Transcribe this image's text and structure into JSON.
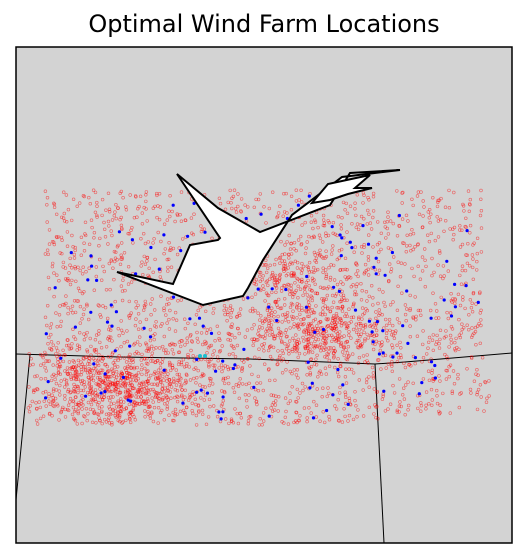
{
  "figure": {
    "title": "Optimal Wind Farm Locations",
    "background_color": "#d3d3d3",
    "lake_color": "#ffffff",
    "border_color": "#000000"
  },
  "chart_data": {
    "type": "scatter",
    "title": "Optimal Wind Farm Locations",
    "xlabel": "",
    "ylabel": "",
    "grid": false,
    "axes": "off",
    "series": [
      {
        "role": "candidate-sites",
        "marker": "small-circle",
        "color": "#ff0000",
        "approx_count": 3000
      },
      {
        "role": "selected-sites",
        "marker": "dot",
        "color": "#0000ff",
        "approx_count": 130
      },
      {
        "role": "highlighted-sites",
        "marker": "dot",
        "color": "#17becf",
        "approx_count": 2
      }
    ]
  }
}
